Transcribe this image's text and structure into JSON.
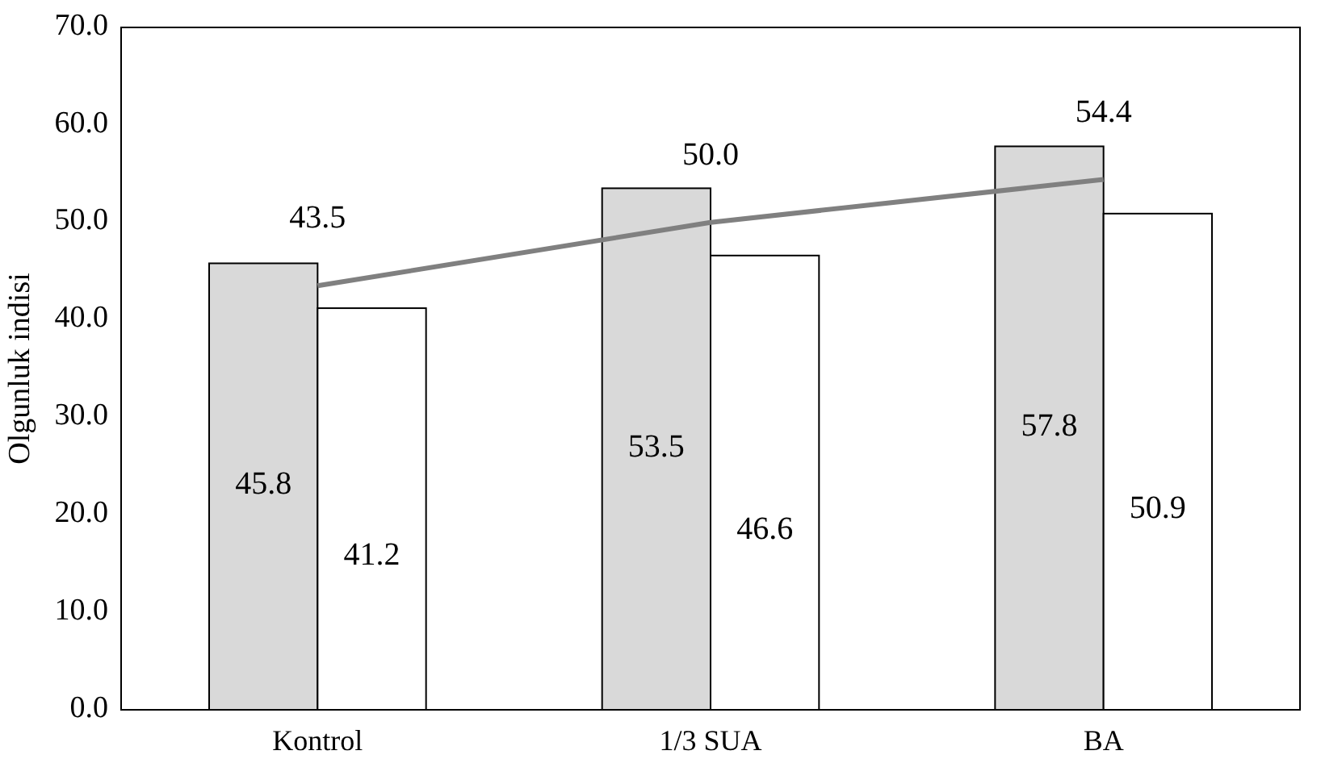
{
  "chart_data": {
    "type": "bar",
    "ylabel": "Olgunluk indisi",
    "categories": [
      "Kontrol",
      "1/3 SUA",
      "BA"
    ],
    "series": [
      {
        "color": "#d9d9d9",
        "values": [
          45.8,
          53.5,
          57.8
        ],
        "value_labels": [
          "45.8",
          "53.5",
          "57.8"
        ]
      },
      {
        "color": "#ffffff",
        "values": [
          41.2,
          46.6,
          50.9
        ],
        "value_labels": [
          "41.2",
          "46.6",
          "50.9"
        ]
      },
      {
        "type": "line",
        "color": "#808080",
        "values": [
          43.5,
          50.0,
          54.4
        ],
        "value_labels": [
          "43.5",
          "50.0",
          "54.4"
        ],
        "marker": "none"
      }
    ],
    "ylim": [
      0,
      70
    ],
    "yticks": [
      {
        "value": 0,
        "label": "0.0"
      },
      {
        "value": 10,
        "label": "10.0"
      },
      {
        "value": 20,
        "label": "20.0"
      },
      {
        "value": 30,
        "label": "30.0"
      },
      {
        "value": 40,
        "label": "40.0"
      },
      {
        "value": 50,
        "label": "50.0"
      },
      {
        "value": 60,
        "label": "60.0"
      },
      {
        "value": 70,
        "label": "70.0"
      }
    ],
    "grid": false
  }
}
